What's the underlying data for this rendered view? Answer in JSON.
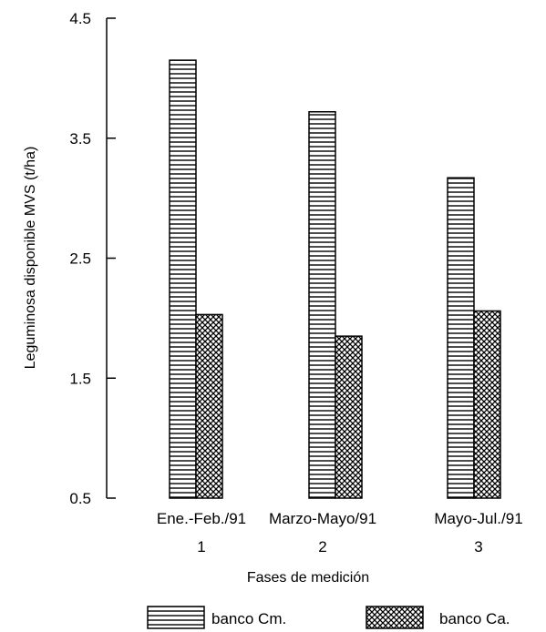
{
  "chart_data": {
    "type": "bar",
    "xlabel": "Fases de medición",
    "ylabel": "Leguminosa disponible MVS (t/ha)",
    "ylim": [
      0.5,
      4.5
    ],
    "yticks": [
      "0.5",
      "1.5",
      "2.5",
      "3.5",
      "4.5"
    ],
    "categories": [
      "Ene.-Feb./91",
      "Marzo-Mayo/91",
      "Mayo-Jul./91"
    ],
    "category_numbers": [
      "1",
      "2",
      "3"
    ],
    "series": [
      {
        "name": "banco Cm.",
        "pattern": "horizontal-stripes",
        "values": [
          4.15,
          3.72,
          3.17
        ]
      },
      {
        "name": "banco Ca.",
        "pattern": "crosshatch-dots",
        "values": [
          2.03,
          1.85,
          2.06
        ]
      }
    ],
    "legend_position": "bottom",
    "grid": false,
    "colors": {
      "ink": "#000000",
      "background": "#ffffff"
    }
  }
}
